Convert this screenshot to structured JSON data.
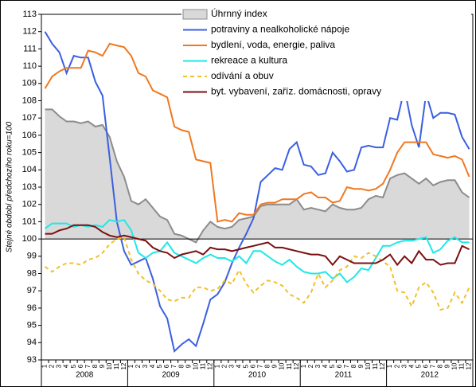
{
  "chart_data": {
    "type": "line",
    "y_axis_label": "Stejné období předchozího roku=100",
    "categories": [
      "1",
      "2",
      "3",
      "4",
      "5",
      "6",
      "7",
      "8",
      "9",
      "10",
      "11",
      "12",
      "1",
      "2",
      "3",
      "4",
      "5",
      "6",
      "7",
      "8",
      "9",
      "10",
      "11",
      "12",
      "1",
      "2",
      "3",
      "4",
      "5",
      "6",
      "7",
      "8",
      "9",
      "10",
      "11",
      "12",
      "1",
      "2",
      "3",
      "4",
      "5",
      "6",
      "7",
      "8",
      "9",
      "10",
      "11",
      "12",
      "1",
      "2",
      "3",
      "4",
      "5",
      "6",
      "7",
      "8",
      "9",
      "10",
      "11",
      "12"
    ],
    "years": [
      "2008",
      "2009",
      "2010",
      "2011",
      "2012"
    ],
    "ylim": [
      93,
      113
    ],
    "yticks": [
      93,
      94,
      95,
      96,
      97,
      98,
      99,
      100,
      101,
      102,
      103,
      104,
      105,
      106,
      107,
      108,
      109,
      110,
      111,
      112,
      113
    ],
    "axis_cross": 100,
    "series": [
      {
        "name": "Úhrnný index",
        "kind": "area",
        "color": "#d9d9d9",
        "line_color": "#8c8c8c",
        "values": [
          107.5,
          107.5,
          107.1,
          106.8,
          106.8,
          106.7,
          106.8,
          106.5,
          106.6,
          105.9,
          104.5,
          103.6,
          102.2,
          102.0,
          102.3,
          101.8,
          101.3,
          101.1,
          100.3,
          100.2,
          100.0,
          99.8,
          100.5,
          101.0,
          100.7,
          100.6,
          100.7,
          101.1,
          101.2,
          101.3,
          101.9,
          102.0,
          102.0,
          102.0,
          102.0,
          102.3,
          101.7,
          101.8,
          101.7,
          101.6,
          102.0,
          101.8,
          101.7,
          101.7,
          101.8,
          102.3,
          102.5,
          102.4,
          103.5,
          103.7,
          103.8,
          103.5,
          103.2,
          103.5,
          103.1,
          103.3,
          103.4,
          103.4,
          102.7,
          102.4
        ]
      },
      {
        "name": "potraviny a nealkoholické nápoje",
        "color": "#3b5fe0",
        "values": [
          112.0,
          111.3,
          110.8,
          109.6,
          110.6,
          110.5,
          110.5,
          109.1,
          108.3,
          104.7,
          101.0,
          99.3,
          98.5,
          98.7,
          98.9,
          97.7,
          96.1,
          95.4,
          93.5,
          93.9,
          94.2,
          93.8,
          95.1,
          96.5,
          96.8,
          97.5,
          98.6,
          99.5,
          100.3,
          101.2,
          103.3,
          103.7,
          104.1,
          104.0,
          105.2,
          105.6,
          104.3,
          104.2,
          103.7,
          103.8,
          105.0,
          104.5,
          103.9,
          104.0,
          105.3,
          105.4,
          105.3,
          105.3,
          107.0,
          106.9,
          108.7,
          106.6,
          105.3,
          108.4,
          107.0,
          107.3,
          107.3,
          107.2,
          105.9,
          105.2
        ]
      },
      {
        "name": "bydlení, voda, energie, paliva",
        "color": "#f07820",
        "values": [
          108.7,
          109.4,
          109.7,
          109.9,
          109.9,
          109.9,
          110.9,
          110.8,
          110.6,
          111.3,
          111.2,
          111.1,
          110.6,
          109.6,
          109.4,
          108.6,
          108.4,
          108.2,
          106.5,
          106.3,
          106.2,
          104.6,
          104.5,
          104.4,
          101.0,
          101.1,
          101.0,
          101.5,
          101.4,
          101.4,
          102.0,
          102.1,
          102.1,
          102.3,
          102.3,
          102.3,
          102.6,
          102.7,
          102.4,
          102.4,
          102.1,
          102.2,
          103.0,
          102.9,
          102.9,
          102.8,
          102.9,
          103.2,
          104.0,
          105.0,
          105.6,
          105.6,
          105.6,
          105.6,
          104.9,
          104.8,
          104.7,
          104.8,
          104.6,
          103.6
        ]
      },
      {
        "name": "rekreace  a kultura",
        "color": "#1ee8e8",
        "values": [
          100.6,
          100.9,
          100.9,
          100.9,
          100.7,
          100.8,
          100.7,
          100.8,
          100.7,
          101.1,
          101.0,
          101.1,
          100.5,
          99.2,
          98.9,
          99.2,
          99.3,
          99.8,
          99.2,
          99.0,
          98.8,
          98.6,
          98.9,
          99.1,
          98.9,
          98.9,
          98.7,
          99.0,
          98.6,
          99.3,
          99.3,
          99.0,
          98.7,
          98.5,
          98.8,
          98.4,
          98.1,
          98.0,
          98.0,
          98.1,
          97.7,
          98.0,
          97.5,
          97.8,
          98.3,
          98.2,
          98.9,
          99.6,
          99.6,
          99.8,
          99.9,
          99.9,
          100.0,
          100.1,
          99.2,
          99.4,
          99.9,
          100.1,
          99.8,
          99.8
        ]
      },
      {
        "name": "odívání a obuv",
        "color": "#f2c02a",
        "dashed": true,
        "values": [
          98.4,
          98.1,
          98.4,
          98.6,
          98.6,
          98.5,
          98.8,
          98.9,
          99.2,
          99.7,
          100.0,
          100.1,
          98.8,
          98.0,
          97.6,
          97.4,
          97.0,
          96.5,
          96.4,
          96.6,
          96.6,
          97.2,
          97.2,
          97.0,
          97.1,
          97.6,
          97.4,
          98.2,
          97.4,
          96.9,
          97.3,
          97.6,
          97.5,
          97.3,
          96.8,
          96.6,
          96.3,
          96.9,
          98.0,
          97.2,
          97.6,
          98.2,
          98.4,
          99.0,
          98.9,
          99.2,
          99.0,
          98.7,
          98.4,
          97.0,
          96.9,
          96.1,
          97.2,
          97.5,
          96.9,
          95.9,
          96.0,
          96.9,
          96.3,
          97.2
        ]
      },
      {
        "name": "byt. vybavení, zaříz. domácnosti, opravy",
        "color": "#7a1010",
        "values": [
          100.3,
          100.3,
          100.5,
          100.6,
          100.8,
          100.8,
          100.8,
          100.7,
          100.4,
          100.2,
          100.1,
          100.2,
          100.1,
          100.0,
          99.9,
          99.5,
          99.3,
          99.2,
          98.9,
          99.1,
          99.2,
          99.3,
          99.1,
          99.5,
          99.4,
          99.4,
          99.3,
          99.4,
          99.5,
          99.6,
          99.7,
          99.8,
          99.5,
          99.5,
          99.4,
          99.3,
          99.2,
          99.1,
          99.1,
          99.0,
          98.5,
          99.0,
          98.8,
          98.6,
          98.6,
          98.6,
          98.6,
          98.8,
          99.1,
          98.5,
          99.0,
          98.6,
          99.3,
          98.8,
          98.8,
          98.5,
          98.6,
          98.6,
          99.6,
          99.4
        ]
      }
    ]
  }
}
